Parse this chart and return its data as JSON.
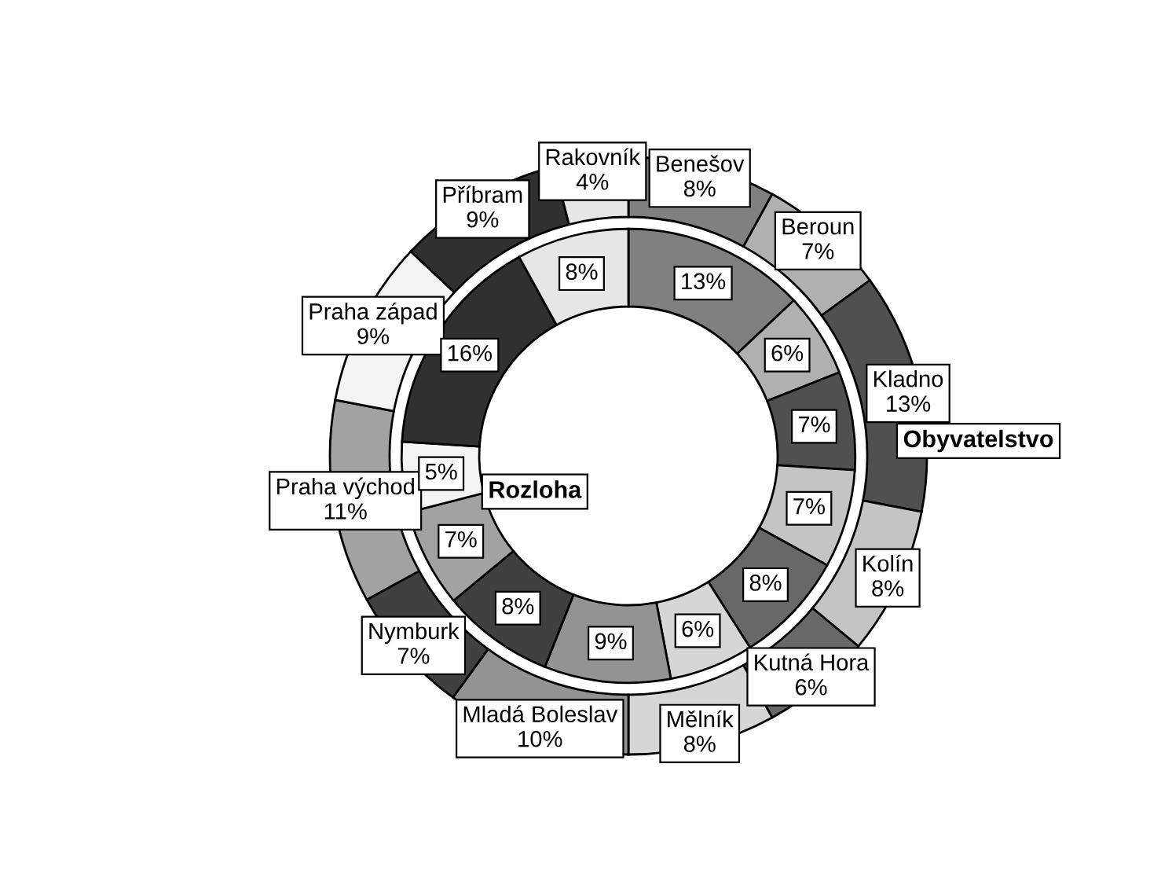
{
  "chart_data": {
    "type": "donut",
    "categories": [
      "Benešov",
      "Beroun",
      "Kladno",
      "Kolín",
      "Kutná Hora",
      "Mělník",
      "Mladá Boleslav",
      "Nymburk",
      "Praha východ",
      "Praha západ",
      "Příbram",
      "Rakovník"
    ],
    "colors": [
      "#808080",
      "#b0b0b0",
      "#505050",
      "#c4c4c4",
      "#686868",
      "#d6d6d6",
      "#939393",
      "#404040",
      "#a2a2a2",
      "#f4f4f4",
      "#303030",
      "#e6e6e6"
    ],
    "series": [
      {
        "name": "Obyvatelstvo",
        "values": [
          8,
          7,
          13,
          8,
          6,
          8,
          10,
          7,
          11,
          9,
          9,
          4
        ],
        "value_labels": [
          "8%",
          "7%",
          "13%",
          "8%",
          "6%",
          "8%",
          "10%",
          "7%",
          "11%",
          "9%",
          "9%",
          "4%"
        ]
      },
      {
        "name": "Rozloha",
        "values": [
          13,
          6,
          7,
          7,
          8,
          6,
          9,
          8,
          7,
          5,
          16,
          8
        ],
        "value_labels": [
          "13%",
          "6%",
          "7%",
          "7%",
          "8%",
          "6%",
          "9%",
          "8%",
          "7%",
          "5%",
          "16%",
          "8%"
        ]
      }
    ]
  }
}
